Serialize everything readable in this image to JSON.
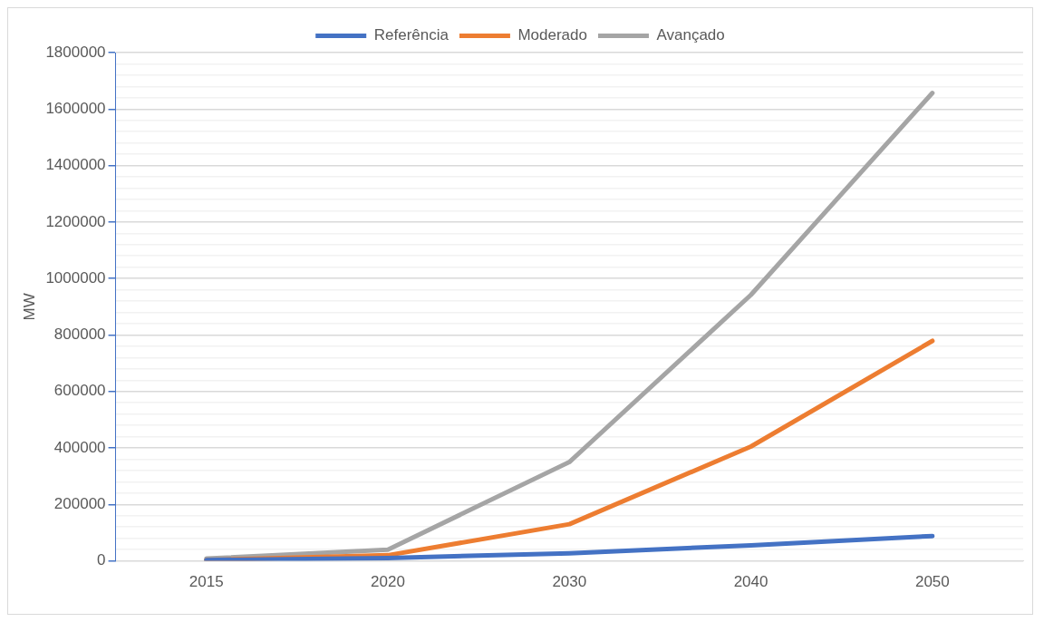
{
  "chart_data": {
    "type": "line",
    "ylabel": "MW",
    "categories": [
      "2015",
      "2020",
      "2030",
      "2040",
      "2050"
    ],
    "series": [
      {
        "name": "Referência",
        "color": "#4472c4",
        "values": [
          3000,
          10000,
          27000,
          55000,
          88000
        ]
      },
      {
        "name": "Moderado",
        "color": "#ed7d31",
        "values": [
          3000,
          20000,
          130000,
          405000,
          779000
        ]
      },
      {
        "name": "Avançado",
        "color": "#a5a5a5",
        "values": [
          8000,
          40000,
          350000,
          942000,
          1657000
        ]
      }
    ],
    "ylim": [
      0,
      1800000
    ],
    "yticks": [
      0,
      {
        "value": 40000,
        "label": null
      },
      {
        "value": 80000,
        "label": null
      },
      {
        "value": 120000,
        "label": null
      },
      {
        "value": 160000,
        "label": null
      },
      200000,
      {
        "value": 240000,
        "label": null
      },
      {
        "value": 280000,
        "label": null
      },
      {
        "value": 320000,
        "label": null
      },
      {
        "value": 360000,
        "label": null
      },
      400000,
      {
        "value": 440000,
        "label": null
      },
      {
        "value": 480000,
        "label": null
      },
      {
        "value": 520000,
        "label": null
      },
      {
        "value": 560000,
        "label": null
      },
      600000,
      {
        "value": 640000,
        "label": null
      },
      {
        "value": 680000,
        "label": null
      },
      {
        "value": 720000,
        "label": null
      },
      {
        "value": 760000,
        "label": null
      },
      800000,
      {
        "value": 840000,
        "label": null
      },
      {
        "value": 880000,
        "label": null
      },
      {
        "value": 920000,
        "label": null
      },
      {
        "value": 960000,
        "label": null
      },
      1000000,
      {
        "value": 1040000,
        "label": null
      },
      {
        "value": 1080000,
        "label": null
      },
      {
        "value": 1120000,
        "label": null
      },
      {
        "value": 1160000,
        "label": null
      },
      1200000,
      {
        "value": 1240000,
        "label": null
      },
      {
        "value": 1280000,
        "label": null
      },
      {
        "value": 1320000,
        "label": null
      },
      {
        "value": 1360000,
        "label": null
      },
      1400000,
      {
        "value": 1440000,
        "label": null
      },
      {
        "value": 1480000,
        "label": null
      },
      {
        "value": 1520000,
        "label": null
      },
      {
        "value": 1560000,
        "label": null
      },
      1600000,
      {
        "value": 1640000,
        "label": null
      },
      {
        "value": 1680000,
        "label": null
      },
      {
        "value": 1720000,
        "label": null
      },
      {
        "value": 1760000,
        "label": null
      },
      1800000
    ],
    "grid": "y",
    "legend": "top",
    "marker": "none",
    "line_style": "solid"
  }
}
